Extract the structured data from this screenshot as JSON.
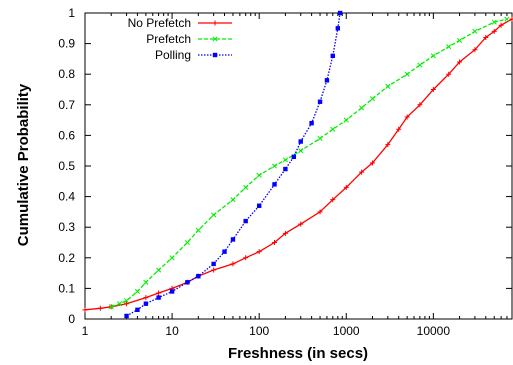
{
  "chart_data": {
    "type": "line",
    "xlabel": "Freshness (in secs)",
    "ylabel": "Cumulative Probability",
    "xscale": "log",
    "xlim": [
      1,
      80000
    ],
    "ylim": [
      0,
      1
    ],
    "xticks": [
      {
        "value": 1,
        "label": "1"
      },
      {
        "value": 10,
        "label": "10"
      },
      {
        "value": 100,
        "label": "100"
      },
      {
        "value": 1000,
        "label": "1000"
      },
      {
        "value": 10000,
        "label": "10000"
      }
    ],
    "yticks": [
      {
        "value": 0,
        "label": "0"
      },
      {
        "value": 0.1,
        "label": "0.1"
      },
      {
        "value": 0.2,
        "label": "0.2"
      },
      {
        "value": 0.3,
        "label": "0.3"
      },
      {
        "value": 0.4,
        "label": "0.4"
      },
      {
        "value": 0.5,
        "label": "0.5"
      },
      {
        "value": 0.6,
        "label": "0.6"
      },
      {
        "value": 0.7,
        "label": "0.7"
      },
      {
        "value": 0.8,
        "label": "0.8"
      },
      {
        "value": 0.9,
        "label": "0.9"
      },
      {
        "value": 1,
        "label": "1"
      }
    ],
    "grid": false,
    "legend_position": "top-left",
    "series": [
      {
        "name": "No Prefetch",
        "color": "#ff0000",
        "marker": "plus",
        "points": [
          [
            1,
            0.03
          ],
          [
            1.5,
            0.035
          ],
          [
            2,
            0.04
          ],
          [
            3,
            0.05
          ],
          [
            5,
            0.07
          ],
          [
            7,
            0.085
          ],
          [
            10,
            0.1
          ],
          [
            15,
            0.12
          ],
          [
            20,
            0.14
          ],
          [
            30,
            0.16
          ],
          [
            50,
            0.18
          ],
          [
            70,
            0.2
          ],
          [
            100,
            0.22
          ],
          [
            150,
            0.25
          ],
          [
            200,
            0.28
          ],
          [
            300,
            0.31
          ],
          [
            500,
            0.35
          ],
          [
            700,
            0.39
          ],
          [
            1000,
            0.43
          ],
          [
            1500,
            0.48
          ],
          [
            2000,
            0.51
          ],
          [
            3000,
            0.57
          ],
          [
            4000,
            0.62
          ],
          [
            5000,
            0.66
          ],
          [
            7000,
            0.7
          ],
          [
            10000,
            0.75
          ],
          [
            15000,
            0.8
          ],
          [
            20000,
            0.84
          ],
          [
            30000,
            0.88
          ],
          [
            40000,
            0.92
          ],
          [
            50000,
            0.94
          ],
          [
            60000,
            0.96
          ],
          [
            80000,
            0.98
          ]
        ]
      },
      {
        "name": "Prefetch",
        "color": "#00ee00",
        "marker": "x",
        "points": [
          [
            2,
            0.04
          ],
          [
            2.5,
            0.05
          ],
          [
            3,
            0.06
          ],
          [
            4,
            0.09
          ],
          [
            5,
            0.12
          ],
          [
            7,
            0.16
          ],
          [
            10,
            0.2
          ],
          [
            15,
            0.25
          ],
          [
            20,
            0.29
          ],
          [
            30,
            0.34
          ],
          [
            50,
            0.39
          ],
          [
            70,
            0.43
          ],
          [
            100,
            0.47
          ],
          [
            150,
            0.5
          ],
          [
            200,
            0.52
          ],
          [
            300,
            0.55
          ],
          [
            500,
            0.59
          ],
          [
            700,
            0.62
          ],
          [
            1000,
            0.65
          ],
          [
            1500,
            0.69
          ],
          [
            2000,
            0.72
          ],
          [
            3000,
            0.76
          ],
          [
            5000,
            0.8
          ],
          [
            7000,
            0.83
          ],
          [
            10000,
            0.86
          ],
          [
            15000,
            0.89
          ],
          [
            20000,
            0.91
          ],
          [
            30000,
            0.94
          ],
          [
            50000,
            0.97
          ],
          [
            70000,
            0.98
          ]
        ]
      },
      {
        "name": "Polling",
        "color": "#0000ff",
        "marker": "square",
        "points": [
          [
            3,
            0.01
          ],
          [
            4,
            0.03
          ],
          [
            5,
            0.05
          ],
          [
            7,
            0.07
          ],
          [
            10,
            0.09
          ],
          [
            15,
            0.12
          ],
          [
            20,
            0.14
          ],
          [
            30,
            0.18
          ],
          [
            40,
            0.22
          ],
          [
            50,
            0.26
          ],
          [
            70,
            0.32
          ],
          [
            100,
            0.37
          ],
          [
            150,
            0.44
          ],
          [
            200,
            0.49
          ],
          [
            250,
            0.53
          ],
          [
            300,
            0.58
          ],
          [
            400,
            0.64
          ],
          [
            500,
            0.71
          ],
          [
            600,
            0.78
          ],
          [
            700,
            0.86
          ],
          [
            800,
            0.95
          ],
          [
            850,
            1.0
          ]
        ]
      }
    ]
  }
}
